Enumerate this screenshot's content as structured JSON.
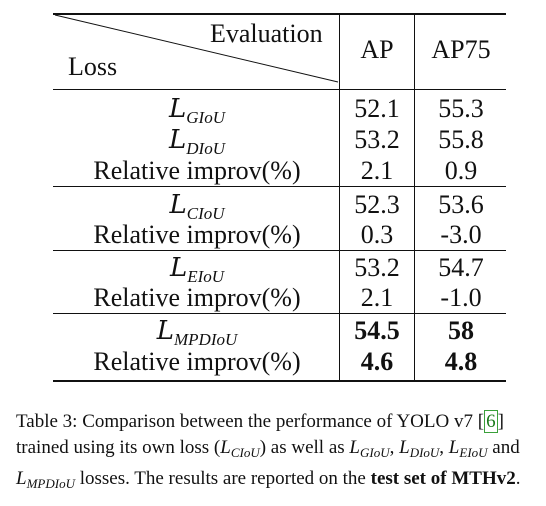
{
  "table": {
    "header": {
      "evaluation_label": "Evaluation",
      "loss_label": "Loss",
      "col_ap": "AP",
      "col_ap75": "AP75"
    },
    "rows": [
      {
        "label_sym": "L",
        "label_sub": "GIoU",
        "ap": "52.1",
        "ap75": "55.3",
        "bold": false
      },
      {
        "label_sym": "L",
        "label_sub": "DIoU",
        "ap": "53.2",
        "ap75": "55.8",
        "bold": false
      },
      {
        "label_text": "Relative improv(%)",
        "ap": "2.1",
        "ap75": "0.9",
        "bold": false
      },
      {
        "label_sym": "L",
        "label_sub": "CIoU",
        "ap": "52.3",
        "ap75": "53.6",
        "bold": false
      },
      {
        "label_text": "Relative improv(%)",
        "ap": "0.3",
        "ap75": "-3.0",
        "bold": false
      },
      {
        "label_sym": "L",
        "label_sub": "EIoU",
        "ap": "53.2",
        "ap75": "54.7",
        "bold": false
      },
      {
        "label_text": "Relative improv(%)",
        "ap": "2.1",
        "ap75": "-1.0",
        "bold": false
      },
      {
        "label_sym": "L",
        "label_sub": "MPDIoU",
        "ap": "54.5",
        "ap75": "58",
        "bold": true
      },
      {
        "label_text": "Relative improv(%)",
        "ap": "4.6",
        "ap75": "4.8",
        "bold": true
      }
    ]
  },
  "caption": {
    "p1": "Table 3: Comparison between the performance of YOLO v7",
    "cite": "6",
    "p2": " trained using its own loss (",
    "sym": "L",
    "sub_ciou": "CIoU",
    "p3": ") as well as ",
    "sub_giou": "GIoU",
    "sub_diou": "DIoU",
    "sub_eiou": "EIoU",
    "p4": " and ",
    "sub_mpdiou": "MPDIoU",
    "p5": " losses. The results are reported on the ",
    "bold_tail": "test set of MTHv2",
    "p6": "."
  }
}
